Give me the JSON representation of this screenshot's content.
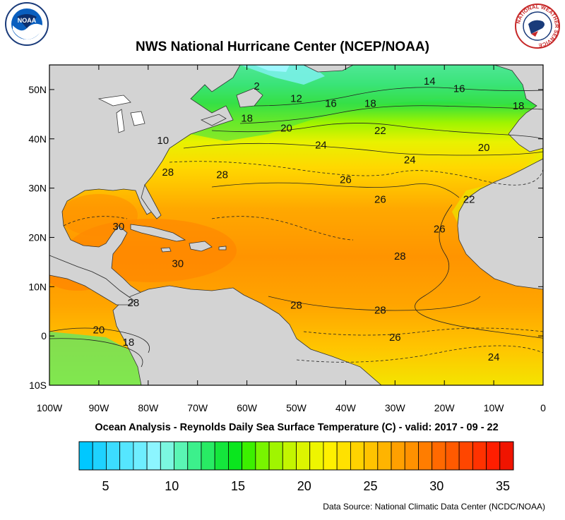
{
  "header": {
    "title": "NWS National Hurricane Center (NCEP/NOAA)",
    "left_logo_icon": "noaa-logo-icon",
    "left_logo_text": "NOAA",
    "right_logo_icon": "nws-logo-icon",
    "right_logo_text": "NATIONAL WEATHER SERVICE"
  },
  "map": {
    "lat_labels": [
      "50N",
      "40N",
      "30N",
      "20N",
      "10N",
      "0",
      "10S"
    ],
    "lat_values": [
      50,
      40,
      30,
      20,
      10,
      0,
      -10
    ],
    "lon_labels": [
      "100W",
      "90W",
      "80W",
      "70W",
      "60W",
      "50W",
      "40W",
      "30W",
      "20W",
      "10W",
      "0"
    ],
    "lon_values": [
      -100,
      -90,
      -80,
      -70,
      -60,
      -50,
      -40,
      -30,
      -20,
      -10,
      0
    ],
    "lon_range": [
      -100,
      0
    ],
    "lat_range": [
      -10,
      55
    ],
    "land_color": "#d3d3d3",
    "contour_labels": [
      {
        "text": "14",
        "lon": -23,
        "lat": 51
      },
      {
        "text": "16",
        "lon": -17,
        "lat": 49.5
      },
      {
        "text": "18",
        "lon": -5,
        "lat": 46
      },
      {
        "text": "18",
        "lon": -35,
        "lat": 46.5
      },
      {
        "text": "16",
        "lon": -43,
        "lat": 46.5
      },
      {
        "text": "12",
        "lon": -50,
        "lat": 47.5
      },
      {
        "text": "20",
        "lon": -52,
        "lat": 41.5
      },
      {
        "text": "22",
        "lon": -33,
        "lat": 41
      },
      {
        "text": "24",
        "lon": -45,
        "lat": 38
      },
      {
        "text": "24",
        "lon": -27,
        "lat": 35
      },
      {
        "text": "20",
        "lon": -12,
        "lat": 37.5
      },
      {
        "text": "26",
        "lon": -40,
        "lat": 31
      },
      {
        "text": "26",
        "lon": -33,
        "lat": 27
      },
      {
        "text": "22",
        "lon": -15,
        "lat": 27
      },
      {
        "text": "26",
        "lon": -21,
        "lat": 21
      },
      {
        "text": "28",
        "lon": -29,
        "lat": 15.5
      },
      {
        "text": "28",
        "lon": -33,
        "lat": 4.5
      },
      {
        "text": "26",
        "lon": -30,
        "lat": -1
      },
      {
        "text": "24",
        "lon": -10,
        "lat": -5
      },
      {
        "text": "28",
        "lon": -65,
        "lat": 32
      },
      {
        "text": "28",
        "lon": -76,
        "lat": 32.5
      },
      {
        "text": "18",
        "lon": -60,
        "lat": 43.5
      },
      {
        "text": "10",
        "lon": -77,
        "lat": 39
      },
      {
        "text": "30",
        "lon": -86,
        "lat": 21.5
      },
      {
        "text": "30",
        "lon": -74,
        "lat": 14
      },
      {
        "text": "28",
        "lon": -83,
        "lat": 6
      },
      {
        "text": "28",
        "lon": -50,
        "lat": 5.5
      },
      {
        "text": "20",
        "lon": -90,
        "lat": 0.5
      },
      {
        "text": "18",
        "lon": -84,
        "lat": -2
      },
      {
        "text": "2",
        "lon": -58,
        "lat": 50
      }
    ]
  },
  "subtitle": "Ocean Analysis - Reynolds Daily Sea Surface Temperature (C) - valid: 2017 - 09 - 22",
  "colorbar": {
    "labels": [
      "5",
      "10",
      "15",
      "20",
      "25",
      "30",
      "35"
    ],
    "label_values": [
      5,
      10,
      15,
      20,
      25,
      30,
      35
    ],
    "min": 3,
    "max": 35.8,
    "colors": [
      "#00c8ff",
      "#1ed2ff",
      "#3cdcff",
      "#55e6ff",
      "#6eeeff",
      "#8cf5ff",
      "#7bf7e0",
      "#5af5b4",
      "#3cf08c",
      "#28eb64",
      "#14e63c",
      "#0ae61e",
      "#3cf000",
      "#78f500",
      "#a0f500",
      "#c3f500",
      "#dcf500",
      "#eef500",
      "#fff000",
      "#ffe100",
      "#ffd200",
      "#ffc300",
      "#ffb400",
      "#ffa000",
      "#ff9100",
      "#ff7d00",
      "#ff6900",
      "#ff5a00",
      "#ff4600",
      "#ff3200",
      "#ff1e00",
      "#f01400"
    ]
  },
  "source": "Data Source: National Climatic Data Center (NCDC/NOAA)"
}
